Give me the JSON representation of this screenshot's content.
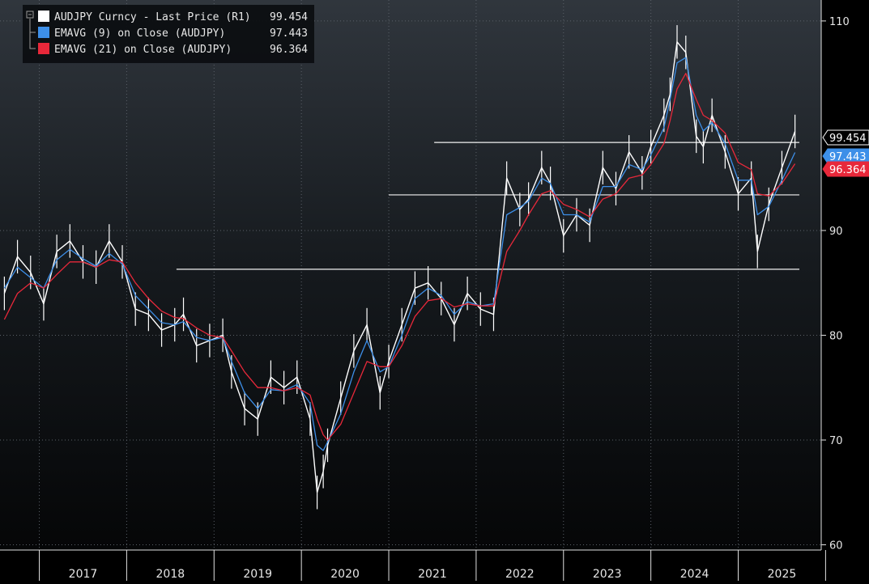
{
  "chart_data": {
    "type": "line",
    "title": "",
    "xlabel": "",
    "ylabel": "",
    "y_axis_side": "right",
    "ylim": [
      59.5,
      112
    ],
    "xlim": [
      2016.55,
      2025.95
    ],
    "grid": true,
    "legend_placement": "top-left",
    "y_ticks": [
      "60",
      "70",
      "80",
      "90",
      "110"
    ],
    "x_ticks": [
      "2017",
      "2018",
      "2019",
      "2020",
      "2021",
      "2022",
      "2023",
      "2024",
      "2025"
    ],
    "legend": [
      {
        "label": "AUDJPY Curncy - Last Price (R1)",
        "value": "99.454",
        "color": "#ffffff"
      },
      {
        "label": "EMAVG (9)  on Close (AUDJPY)",
        "value": "97.443",
        "color": "#3d8fe8"
      },
      {
        "label": "EMAVG (21)  on Close (AUDJPY)",
        "value": "96.364",
        "color": "#e8283a"
      }
    ],
    "last_value_tags": [
      {
        "text": "99.454",
        "value": 99.454,
        "bg": "#000000",
        "fg": "#ffffff",
        "border": "#ffffff"
      },
      {
        "text": "97.443",
        "value": 97.443,
        "bg": "#3d8fe8",
        "fg": "#ffffff",
        "border": "#3d8fe8"
      },
      {
        "text": "96.364",
        "value": 96.364,
        "bg": "#e8283a",
        "fg": "#ffffff",
        "border": "#e8283a"
      }
    ],
    "horizontal_lines": [
      {
        "value": 98.4,
        "x_start": 2021.52,
        "x_end": 2025.7
      },
      {
        "value": 93.4,
        "x_start": 2021.0,
        "x_end": 2025.7
      },
      {
        "value": 86.3,
        "x_start": 2018.57,
        "x_end": 2025.7
      }
    ],
    "series": [
      {
        "name": "AUDJPY Curncy - Last Price (R1)",
        "color": "#ffffff",
        "style": "bars",
        "x": [
          2016.6,
          2016.75,
          2016.9,
          2017.05,
          2017.2,
          2017.35,
          2017.5,
          2017.65,
          2017.8,
          2017.95,
          2018.1,
          2018.25,
          2018.4,
          2018.55,
          2018.65,
          2018.8,
          2018.95,
          2019.1,
          2019.2,
          2019.35,
          2019.5,
          2019.65,
          2019.8,
          2019.95,
          2020.1,
          2020.18,
          2020.25,
          2020.3,
          2020.45,
          2020.6,
          2020.75,
          2020.9,
          2021.0,
          2021.15,
          2021.3,
          2021.45,
          2021.6,
          2021.75,
          2021.9,
          2022.05,
          2022.2,
          2022.35,
          2022.5,
          2022.6,
          2022.75,
          2022.85,
          2023.0,
          2023.15,
          2023.3,
          2023.45,
          2023.6,
          2023.75,
          2023.9,
          2024.0,
          2024.15,
          2024.22,
          2024.3,
          2024.4,
          2024.52,
          2024.6,
          2024.7,
          2024.85,
          2025.0,
          2025.15,
          2025.22,
          2025.35,
          2025.5,
          2025.65
        ],
        "values": [
          84,
          87.5,
          86,
          83,
          88,
          89,
          87,
          86.5,
          89,
          87,
          82.5,
          82,
          80.5,
          81,
          82,
          79,
          79.5,
          80,
          76.5,
          73,
          72,
          76,
          75,
          76,
          72,
          65,
          67,
          69.5,
          74,
          78.5,
          81,
          74.5,
          77.5,
          81,
          84.5,
          85,
          83.5,
          81,
          84,
          82.5,
          82,
          95,
          92,
          93,
          96,
          94.5,
          89.5,
          91.5,
          90.5,
          96,
          94,
          97.5,
          95.5,
          98,
          101,
          103,
          108,
          107,
          99,
          98,
          101,
          97.5,
          93.5,
          95,
          88,
          92.5,
          96,
          99.454
        ]
      },
      {
        "name": "EMAVG (9)  on Close (AUDJPY)",
        "color": "#3d8fe8",
        "style": "line",
        "x": [
          2016.6,
          2016.75,
          2016.9,
          2017.05,
          2017.2,
          2017.35,
          2017.5,
          2017.65,
          2017.8,
          2017.95,
          2018.1,
          2018.25,
          2018.4,
          2018.55,
          2018.65,
          2018.8,
          2018.95,
          2019.1,
          2019.2,
          2019.35,
          2019.5,
          2019.65,
          2019.8,
          2019.95,
          2020.1,
          2020.18,
          2020.25,
          2020.3,
          2020.45,
          2020.6,
          2020.75,
          2020.9,
          2021.0,
          2021.15,
          2021.3,
          2021.45,
          2021.6,
          2021.75,
          2021.9,
          2022.05,
          2022.2,
          2022.35,
          2022.5,
          2022.6,
          2022.75,
          2022.85,
          2023.0,
          2023.15,
          2023.3,
          2023.45,
          2023.6,
          2023.75,
          2023.9,
          2024.0,
          2024.15,
          2024.22,
          2024.3,
          2024.4,
          2024.52,
          2024.6,
          2024.7,
          2024.85,
          2025.0,
          2025.15,
          2025.22,
          2025.35,
          2025.5,
          2025.65
        ],
        "values": [
          84.5,
          86.5,
          85.5,
          84.5,
          87.2,
          88.2,
          87.3,
          86.6,
          87.8,
          86.8,
          83.8,
          82.5,
          81.2,
          81,
          81.3,
          79.8,
          79.5,
          79.8,
          77.5,
          74.5,
          73,
          74.8,
          74.7,
          75.3,
          73.5,
          69.5,
          69,
          69.8,
          72.5,
          76.5,
          79.5,
          76.5,
          77,
          80,
          83.5,
          84.5,
          83.8,
          82,
          83.2,
          82.8,
          83,
          91.5,
          92.2,
          92.8,
          95,
          94.5,
          91.5,
          91.5,
          90.8,
          94.2,
          94.2,
          96.3,
          95.8,
          97.2,
          99.8,
          102.5,
          106,
          106.5,
          101,
          99.5,
          100.3,
          98.3,
          94.8,
          94.8,
          91.5,
          92.3,
          94.8,
          97.443
        ]
      },
      {
        "name": "EMAVG (21)  on Close (AUDJPY)",
        "color": "#e8283a",
        "style": "line",
        "x": [
          2016.6,
          2016.75,
          2016.9,
          2017.05,
          2017.2,
          2017.35,
          2017.5,
          2017.65,
          2017.8,
          2017.95,
          2018.1,
          2018.25,
          2018.4,
          2018.55,
          2018.65,
          2018.8,
          2018.95,
          2019.1,
          2019.2,
          2019.35,
          2019.5,
          2019.65,
          2019.8,
          2019.95,
          2020.1,
          2020.18,
          2020.25,
          2020.3,
          2020.45,
          2020.6,
          2020.75,
          2020.9,
          2021.0,
          2021.15,
          2021.3,
          2021.45,
          2021.6,
          2021.75,
          2021.9,
          2022.05,
          2022.2,
          2022.35,
          2022.5,
          2022.6,
          2022.75,
          2022.85,
          2023.0,
          2023.15,
          2023.3,
          2023.45,
          2023.6,
          2023.75,
          2023.9,
          2024.0,
          2024.15,
          2024.22,
          2024.3,
          2024.4,
          2024.52,
          2024.6,
          2024.7,
          2024.85,
          2025.0,
          2025.15,
          2025.22,
          2025.35,
          2025.5,
          2025.65
        ],
        "values": [
          81.5,
          84,
          85,
          84.5,
          85.8,
          87,
          87,
          86.5,
          87.2,
          87,
          85,
          83.5,
          82.3,
          81.7,
          81.6,
          80.7,
          80,
          79.8,
          78.5,
          76.5,
          75,
          75,
          74.7,
          75,
          74.3,
          72,
          70.5,
          70,
          71.5,
          74.5,
          77.5,
          77,
          77,
          79,
          81.8,
          83.3,
          83.5,
          82.7,
          83,
          82.8,
          82.8,
          88,
          90,
          91.5,
          93.5,
          93.8,
          92.5,
          92,
          91.3,
          93,
          93.5,
          95,
          95.3,
          96.3,
          98.3,
          100.5,
          103.5,
          105,
          102.5,
          101,
          100.5,
          99.3,
          96.5,
          95.8,
          93.5,
          93.3,
          94.5,
          96.364
        ]
      }
    ]
  }
}
